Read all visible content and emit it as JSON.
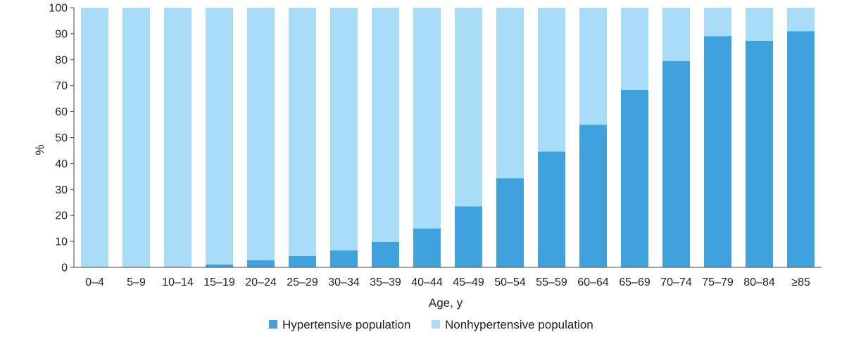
{
  "chart_data": {
    "type": "bar",
    "stacked": true,
    "categories": [
      "0–4",
      "5–9",
      "10–14",
      "15–19",
      "20–24",
      "25–29",
      "30–34",
      "35–39",
      "40–44",
      "45–49",
      "50–54",
      "55–59",
      "60–64",
      "65–69",
      "70–74",
      "75–79",
      "80–84",
      "≥85"
    ],
    "series": [
      {
        "name": "Hypertensive population",
        "color": "#3fa2dc",
        "values": [
          0,
          0,
          0.2,
          1.1,
          2.7,
          4.4,
          6.5,
          9.8,
          15.0,
          23.5,
          34.3,
          44.6,
          54.9,
          68.3,
          79.5,
          89.1,
          87.3,
          91.0
        ]
      },
      {
        "name": "Nonhypertensive population",
        "color": "#a9dcf6",
        "values": [
          100,
          100,
          99.8,
          98.9,
          97.3,
          95.6,
          93.5,
          90.2,
          85.0,
          76.5,
          65.7,
          55.4,
          45.1,
          31.7,
          20.5,
          10.9,
          12.7,
          9.0
        ]
      }
    ],
    "xlabel": "Age, y",
    "ylabel": "%",
    "ylim": [
      0,
      100
    ],
    "yticks": [
      0,
      10,
      20,
      30,
      40,
      50,
      60,
      70,
      80,
      90,
      100
    ],
    "grid": false,
    "legend": "bottom-center"
  }
}
